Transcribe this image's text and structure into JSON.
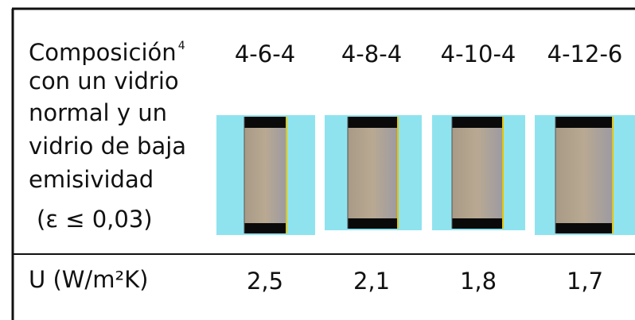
{
  "header": {
    "label_lines": [
      "Composición",
      "con un vidrio",
      "normal y un",
      "vidrio de baja",
      "emisividad"
    ],
    "footnote_mark": "4",
    "condition": "(ε ≤ 0,03)"
  },
  "columns": [
    "4-6-4",
    "4-8-4",
    "4-10-4",
    "4-12-6"
  ],
  "row": {
    "label": "U (W/m²K)",
    "values": [
      "2,5",
      "2,1",
      "1,8",
      "1,7"
    ]
  }
}
